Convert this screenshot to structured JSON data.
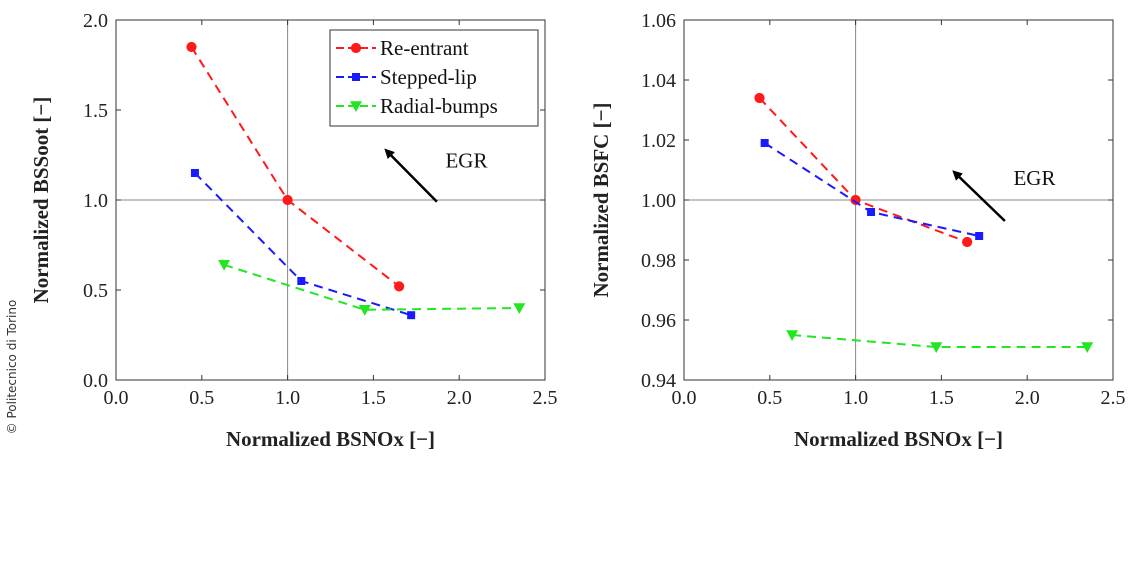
{
  "credit": "© Politecnico di Torino",
  "colors": {
    "re_entrant": "#ff1a1a",
    "stepped_lip": "#1a1aff",
    "radial_bumps": "#22e622",
    "refline": "#888888",
    "arrow": "#000000"
  },
  "chart_data": [
    {
      "type": "line",
      "xlabel": "Normalized BSNOx [−]",
      "ylabel": "Normalized BSSoot [−]",
      "xlim": [
        0.0,
        2.5
      ],
      "ylim": [
        0.0,
        2.0
      ],
      "xticks": [
        "0.0",
        "0.5",
        "1.0",
        "1.5",
        "2.0",
        "2.5"
      ],
      "yticks": [
        "0.0",
        "0.5",
        "1.0",
        "1.5",
        "2.0"
      ],
      "xtick_values": [
        0.0,
        0.5,
        1.0,
        1.5,
        2.0,
        2.5
      ],
      "ytick_values": [
        0.0,
        0.5,
        1.0,
        1.5,
        2.0
      ],
      "reference_lines": {
        "x": 1.0,
        "y": 1.0
      },
      "legend_position": "top-right",
      "annotation": "EGR",
      "arrow": {
        "from": [
          1.87,
          0.99
        ],
        "to": [
          1.58,
          1.27
        ]
      },
      "annotation_at": [
        1.92,
        1.18
      ],
      "series": [
        {
          "name": "Re-entrant",
          "marker": "circle",
          "color_key": "re_entrant",
          "x": [
            0.44,
            1.0,
            1.65
          ],
          "y": [
            1.85,
            1.0,
            0.52
          ]
        },
        {
          "name": "Stepped-lip",
          "marker": "square",
          "color_key": "stepped_lip",
          "x": [
            0.46,
            1.08,
            1.72
          ],
          "y": [
            1.15,
            0.55,
            0.36
          ]
        },
        {
          "name": "Radial-bumps",
          "marker": "triangle-down",
          "color_key": "radial_bumps",
          "x": [
            0.63,
            1.45,
            2.35
          ],
          "y": [
            0.64,
            0.39,
            0.4
          ]
        }
      ]
    },
    {
      "type": "line",
      "xlabel": "Normalized BSNOx [−]",
      "ylabel": "Normalized BSFC [−]",
      "xlim": [
        0.0,
        2.5
      ],
      "ylim": [
        0.94,
        1.06
      ],
      "xticks": [
        "0.0",
        "0.5",
        "1.0",
        "1.5",
        "2.0",
        "2.5"
      ],
      "yticks": [
        "0.94",
        "0.96",
        "0.98",
        "1.00",
        "1.02",
        "1.04",
        "1.06"
      ],
      "xtick_values": [
        0.0,
        0.5,
        1.0,
        1.5,
        2.0,
        2.5
      ],
      "ytick_values": [
        0.94,
        0.96,
        0.98,
        1.0,
        1.02,
        1.04,
        1.06
      ],
      "reference_lines": {
        "x": 1.0,
        "y": 1.0
      },
      "annotation": "EGR",
      "arrow": {
        "from": [
          1.87,
          0.993
        ],
        "to": [
          1.58,
          1.009
        ]
      },
      "annotation_at": [
        1.92,
        1.005
      ],
      "series": [
        {
          "name": "Re-entrant",
          "marker": "circle",
          "color_key": "re_entrant",
          "x": [
            0.44,
            1.0,
            1.65
          ],
          "y": [
            1.034,
            1.0,
            0.986
          ]
        },
        {
          "name": "Stepped-lip",
          "marker": "square",
          "color_key": "stepped_lip",
          "x": [
            0.47,
            1.09,
            1.72
          ],
          "y": [
            1.019,
            0.996,
            0.988
          ]
        },
        {
          "name": "Radial-bumps",
          "marker": "triangle-down",
          "color_key": "radial_bumps",
          "x": [
            0.63,
            1.47,
            2.35
          ],
          "y": [
            0.955,
            0.951,
            0.951
          ]
        }
      ]
    }
  ]
}
